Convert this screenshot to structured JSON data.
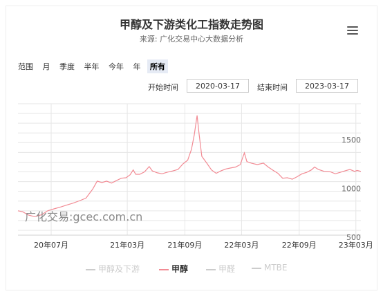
{
  "title": "甲醇及下游类化工指数走势图",
  "subtitle": "来源: 广化交易中心大数据分析",
  "range_selector": {
    "label": "范围",
    "buttons": [
      "月",
      "季度",
      "半年",
      "今年",
      "年",
      "所有"
    ],
    "active": "所有"
  },
  "date_range": {
    "start_label": "开始时间",
    "start_value": "2020-03-17",
    "end_label": "结束时间",
    "end_value": "2023-03-17"
  },
  "watermark": "广化交易:gcec.com.cn",
  "colors": {
    "active_series": "#f28b94",
    "inactive_series": "#cccccc",
    "grid": "#e6e6e6"
  },
  "chart_data": {
    "type": "line",
    "title": "甲醇及下游类化工指数走势图",
    "x_ticks": [
      "20年07月",
      "21年03月",
      "21年09月",
      "22年03月",
      "22年09月",
      "23年03月"
    ],
    "x_tick_dates": [
      "2020-07-01",
      "2021-03-01",
      "2021-09-01",
      "2022-03-01",
      "2022-09-01",
      "2023-03-01"
    ],
    "y_ticks": [
      500,
      1000,
      1500
    ],
    "ylim": [
      450,
      1800
    ],
    "xlim": [
      "2020-03-17",
      "2023-03-17"
    ],
    "grid": true,
    "legend_position": "bottom",
    "series": [
      {
        "name": "甲醇及下游",
        "visible": false,
        "points": []
      },
      {
        "name": "甲醇",
        "visible": true,
        "points": [
          [
            "2020-03-17",
            700
          ],
          [
            "2020-04-01",
            690
          ],
          [
            "2020-04-20",
            655
          ],
          [
            "2020-05-10",
            640
          ],
          [
            "2020-06-01",
            660
          ],
          [
            "2020-06-20",
            700
          ],
          [
            "2020-07-10",
            720
          ],
          [
            "2020-08-01",
            740
          ],
          [
            "2020-08-20",
            760
          ],
          [
            "2020-09-10",
            780
          ],
          [
            "2020-10-01",
            805
          ],
          [
            "2020-10-20",
            830
          ],
          [
            "2020-11-10",
            920
          ],
          [
            "2020-11-25",
            1005
          ],
          [
            "2020-12-10",
            990
          ],
          [
            "2020-12-25",
            1005
          ],
          [
            "2021-01-10",
            985
          ],
          [
            "2021-01-25",
            1010
          ],
          [
            "2021-02-10",
            1035
          ],
          [
            "2021-02-25",
            1040
          ],
          [
            "2021-03-10",
            1070
          ],
          [
            "2021-03-20",
            1120
          ],
          [
            "2021-03-28",
            1075
          ],
          [
            "2021-04-10",
            1075
          ],
          [
            "2021-04-25",
            1100
          ],
          [
            "2021-05-10",
            1155
          ],
          [
            "2021-05-20",
            1110
          ],
          [
            "2021-06-05",
            1090
          ],
          [
            "2021-06-20",
            1080
          ],
          [
            "2021-07-05",
            1095
          ],
          [
            "2021-07-25",
            1110
          ],
          [
            "2021-08-10",
            1125
          ],
          [
            "2021-08-25",
            1180
          ],
          [
            "2021-09-10",
            1220
          ],
          [
            "2021-09-22",
            1330
          ],
          [
            "2021-10-01",
            1480
          ],
          [
            "2021-10-10",
            1680
          ],
          [
            "2021-10-16",
            1500
          ],
          [
            "2021-10-25",
            1260
          ],
          [
            "2021-11-10",
            1190
          ],
          [
            "2021-11-25",
            1120
          ],
          [
            "2021-12-10",
            1085
          ],
          [
            "2021-12-25",
            1110
          ],
          [
            "2022-01-10",
            1130
          ],
          [
            "2022-01-25",
            1140
          ],
          [
            "2022-02-10",
            1150
          ],
          [
            "2022-02-25",
            1175
          ],
          [
            "2022-03-05",
            1250
          ],
          [
            "2022-03-10",
            1295
          ],
          [
            "2022-03-18",
            1205
          ],
          [
            "2022-04-01",
            1190
          ],
          [
            "2022-04-20",
            1175
          ],
          [
            "2022-05-10",
            1190
          ],
          [
            "2022-05-25",
            1150
          ],
          [
            "2022-06-10",
            1115
          ],
          [
            "2022-06-25",
            1085
          ],
          [
            "2022-07-10",
            1035
          ],
          [
            "2022-07-25",
            1040
          ],
          [
            "2022-08-10",
            1025
          ],
          [
            "2022-08-25",
            1050
          ],
          [
            "2022-09-10",
            1080
          ],
          [
            "2022-09-25",
            1095
          ],
          [
            "2022-10-10",
            1120
          ],
          [
            "2022-10-20",
            1150
          ],
          [
            "2022-11-01",
            1125
          ],
          [
            "2022-11-20",
            1105
          ],
          [
            "2022-12-10",
            1100
          ],
          [
            "2022-12-25",
            1080
          ],
          [
            "2023-01-10",
            1095
          ],
          [
            "2023-01-25",
            1110
          ],
          [
            "2023-02-10",
            1125
          ],
          [
            "2023-02-25",
            1105
          ],
          [
            "2023-03-05",
            1115
          ],
          [
            "2023-03-17",
            1105
          ]
        ]
      },
      {
        "name": "甲醛",
        "visible": false,
        "points": []
      },
      {
        "name": "MTBE",
        "visible": false,
        "points": []
      }
    ]
  }
}
